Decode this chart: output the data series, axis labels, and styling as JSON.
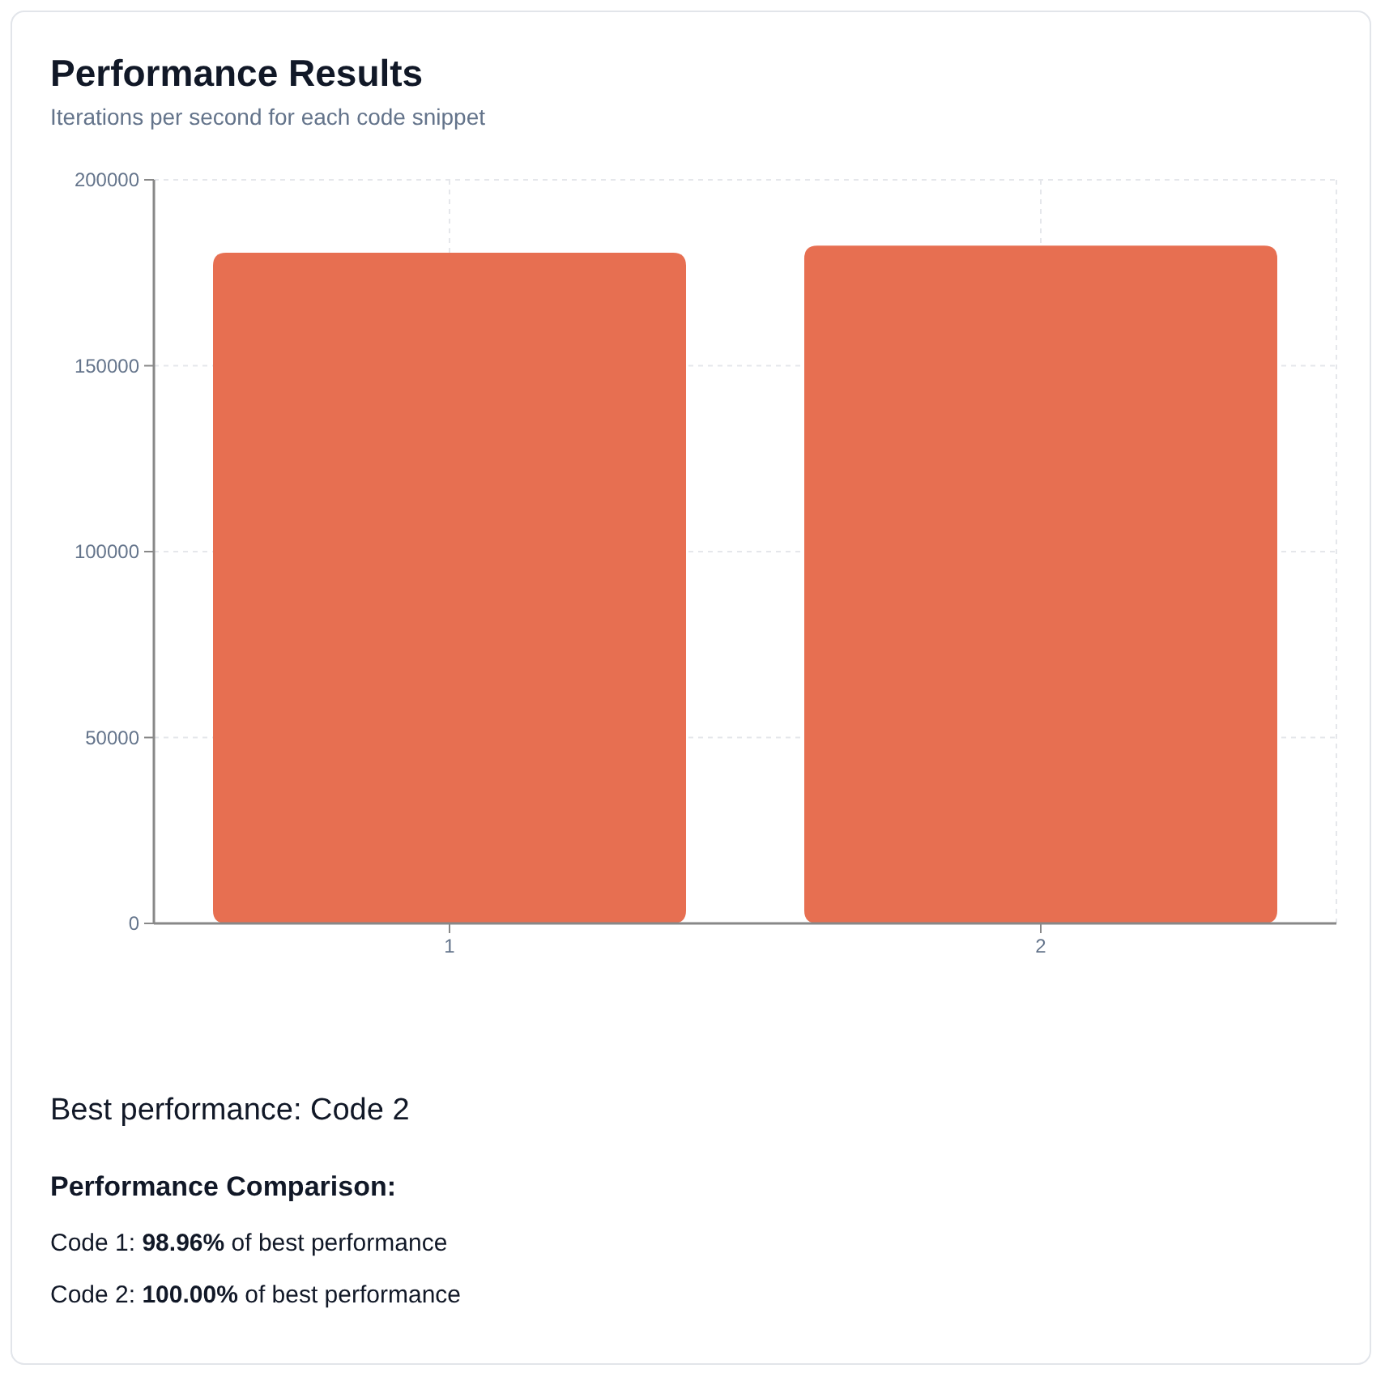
{
  "chart_data": {
    "type": "bar",
    "title": "Performance Results",
    "subtitle": "Iterations per second for each code snippet",
    "categories": [
      "1",
      "2"
    ],
    "values": [
      180400,
      182300
    ],
    "color": "#e76f51",
    "ylim": [
      0,
      200000
    ],
    "yticks": [
      0,
      50000,
      100000,
      150000,
      200000
    ],
    "grid": true,
    "annotations": [
      "Best performance: Code 2",
      "Performance Comparison:",
      "Code 1: 98.96% of best performance",
      "Code 2: 100.00% of best performance"
    ]
  }
}
